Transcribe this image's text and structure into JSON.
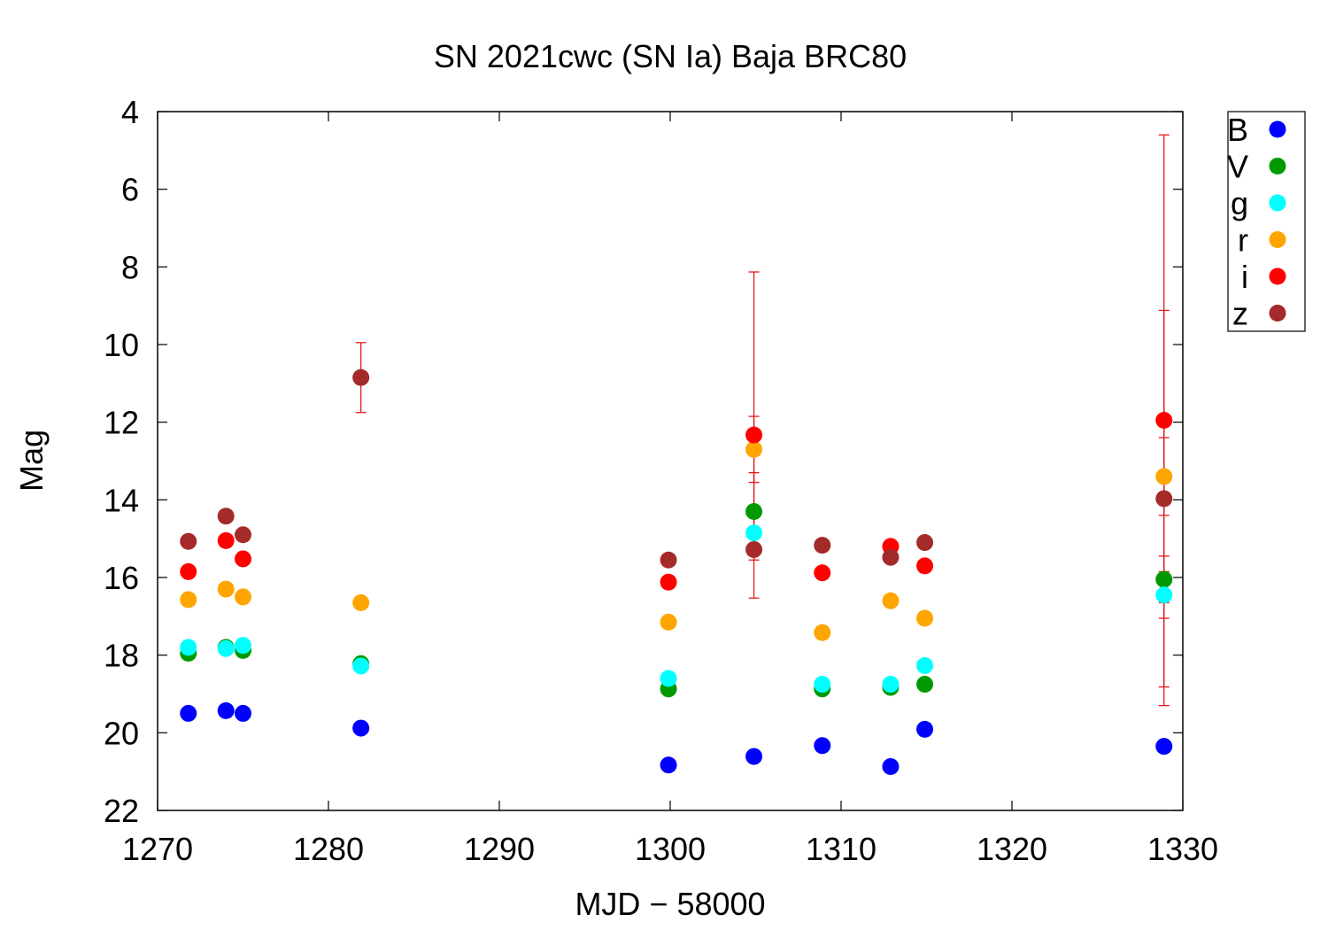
{
  "chart_data": {
    "type": "scatter",
    "title": "SN 2021cwc (SN Ia) Baja BRC80",
    "xlabel": "MJD − 58000",
    "ylabel": "Mag",
    "xlim": [
      1270,
      1330
    ],
    "ylim": [
      22,
      4
    ],
    "y_inverted": true,
    "xticks": [
      1270,
      1280,
      1290,
      1300,
      1310,
      1320,
      1330
    ],
    "yticks": [
      4,
      6,
      8,
      10,
      12,
      14,
      16,
      18,
      20,
      22
    ],
    "legend_position": "outside-top-right",
    "grid": false,
    "error_bar_color": "#e41a1c",
    "series": [
      {
        "name": "B",
        "color": "#0000ff",
        "points": [
          {
            "x": 1271.8,
            "y": 19.5
          },
          {
            "x": 1274.0,
            "y": 19.43
          },
          {
            "x": 1275.0,
            "y": 19.5
          },
          {
            "x": 1281.9,
            "y": 19.88
          },
          {
            "x": 1299.9,
            "y": 20.83
          },
          {
            "x": 1304.9,
            "y": 20.61
          },
          {
            "x": 1308.9,
            "y": 20.33
          },
          {
            "x": 1312.9,
            "y": 20.87
          },
          {
            "x": 1314.9,
            "y": 19.91
          },
          {
            "x": 1328.9,
            "y": 20.35
          }
        ]
      },
      {
        "name": "V",
        "color": "#009a00",
        "points": [
          {
            "x": 1271.8,
            "y": 17.95
          },
          {
            "x": 1274.0,
            "y": 17.8
          },
          {
            "x": 1275.0,
            "y": 17.88
          },
          {
            "x": 1281.9,
            "y": 18.22
          },
          {
            "x": 1299.9,
            "y": 18.87
          },
          {
            "x": 1304.9,
            "y": 14.3,
            "err": 1.0
          },
          {
            "x": 1308.9,
            "y": 18.87
          },
          {
            "x": 1312.9,
            "y": 18.83
          },
          {
            "x": 1314.9,
            "y": 18.75
          },
          {
            "x": 1328.9,
            "y": 16.05,
            "err": 0.6
          }
        ]
      },
      {
        "name": "g",
        "color": "#00ffff",
        "points": [
          {
            "x": 1271.8,
            "y": 17.8
          },
          {
            "x": 1274.0,
            "y": 17.83
          },
          {
            "x": 1275.0,
            "y": 17.75
          },
          {
            "x": 1281.9,
            "y": 18.28
          },
          {
            "x": 1299.9,
            "y": 18.6
          },
          {
            "x": 1304.9,
            "y": 14.85,
            "err": 0.7
          },
          {
            "x": 1308.9,
            "y": 18.75
          },
          {
            "x": 1312.9,
            "y": 18.75
          },
          {
            "x": 1314.9,
            "y": 18.27
          },
          {
            "x": 1328.9,
            "y": 16.45,
            "err": 0.6
          }
        ]
      },
      {
        "name": "r",
        "color": "#ffa500",
        "points": [
          {
            "x": 1271.8,
            "y": 16.57
          },
          {
            "x": 1274.0,
            "y": 16.3
          },
          {
            "x": 1275.0,
            "y": 16.5
          },
          {
            "x": 1281.9,
            "y": 16.65
          },
          {
            "x": 1299.9,
            "y": 17.15
          },
          {
            "x": 1304.9,
            "y": 12.7,
            "err": 0.85
          },
          {
            "x": 1308.9,
            "y": 17.42
          },
          {
            "x": 1312.9,
            "y": 16.6
          },
          {
            "x": 1314.9,
            "y": 17.05
          },
          {
            "x": 1328.9,
            "y": 13.4,
            "err": 1.0
          }
        ]
      },
      {
        "name": "i",
        "color": "#ff0000",
        "points": [
          {
            "x": 1271.8,
            "y": 15.85
          },
          {
            "x": 1274.0,
            "y": 15.05
          },
          {
            "x": 1275.0,
            "y": 15.52
          },
          {
            "x": 1299.9,
            "y": 16.12
          },
          {
            "x": 1304.9,
            "y": 12.33,
            "err": 4.2
          },
          {
            "x": 1308.9,
            "y": 15.88
          },
          {
            "x": 1312.9,
            "y": 15.2
          },
          {
            "x": 1314.9,
            "y": 15.7
          },
          {
            "x": 1328.9,
            "y": 11.95,
            "err": 7.35
          }
        ]
      },
      {
        "name": "z",
        "color": "#a52a2a",
        "points": [
          {
            "x": 1271.8,
            "y": 15.07
          },
          {
            "x": 1274.0,
            "y": 14.42
          },
          {
            "x": 1275.0,
            "y": 14.9
          },
          {
            "x": 1281.9,
            "y": 10.85,
            "err": 0.9
          },
          {
            "x": 1299.9,
            "y": 15.55
          },
          {
            "x": 1304.9,
            "y": 15.28
          },
          {
            "x": 1308.9,
            "y": 15.17
          },
          {
            "x": 1312.9,
            "y": 15.48
          },
          {
            "x": 1314.9,
            "y": 15.1
          },
          {
            "x": 1328.9,
            "y": 13.97,
            "err": 4.85
          }
        ]
      }
    ]
  }
}
